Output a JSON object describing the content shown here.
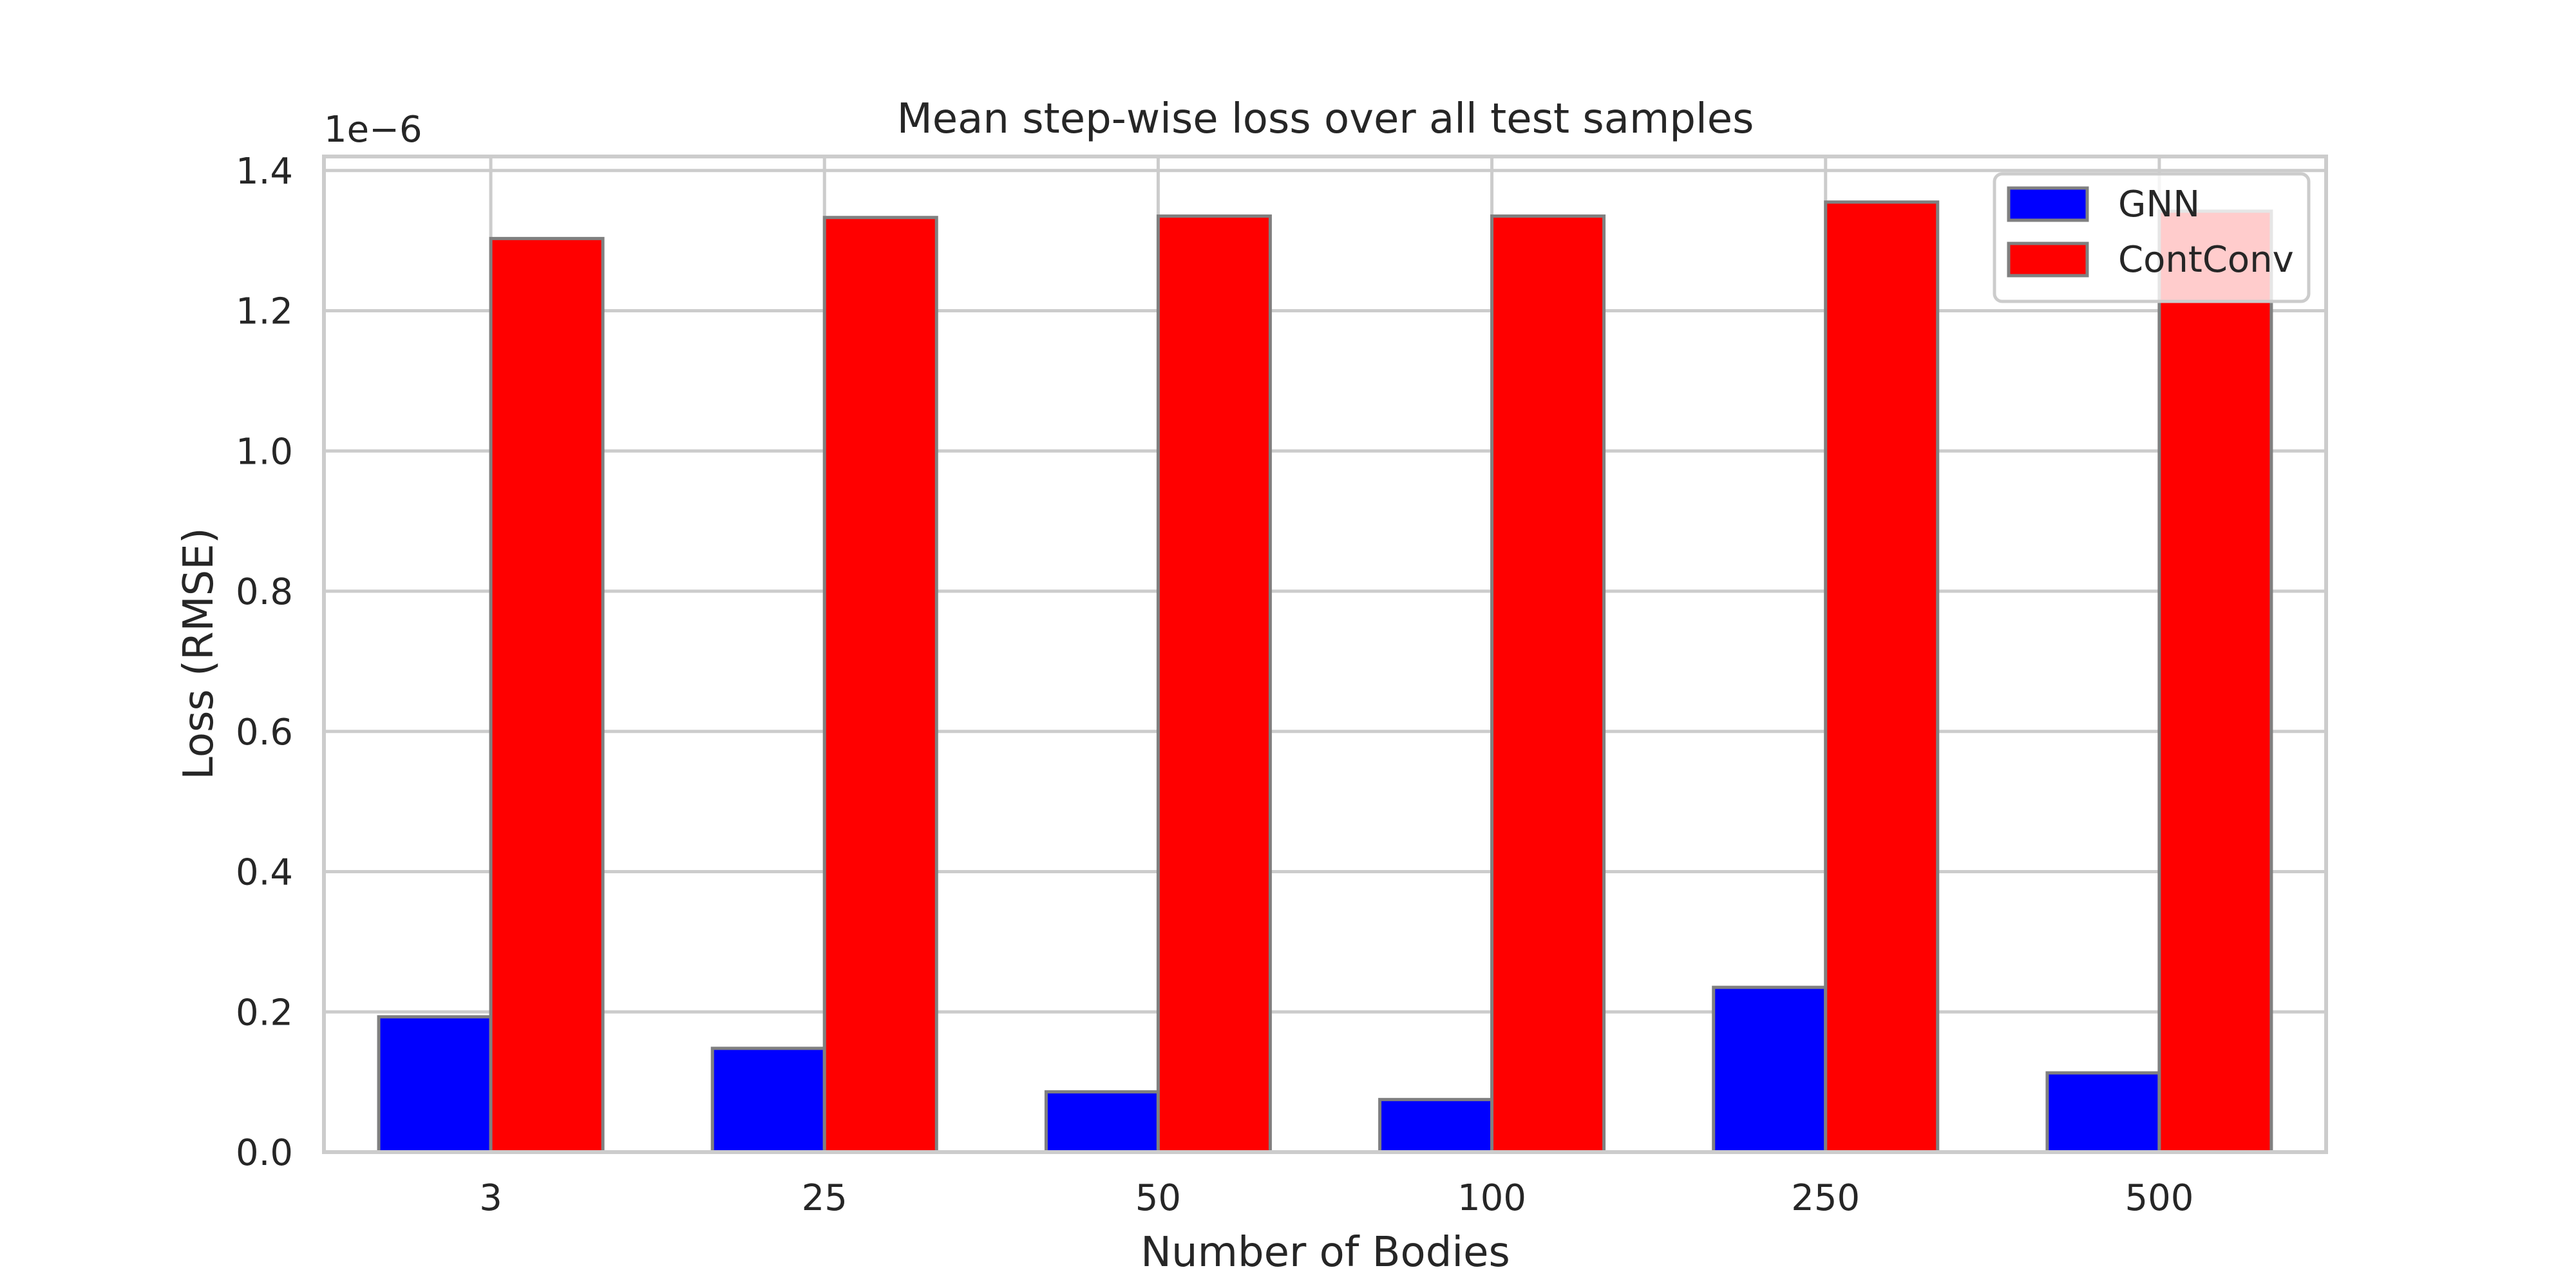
{
  "chart_data": {
    "type": "bar",
    "title": "Mean step-wise loss over all test samples",
    "xlabel": "Number of Bodies",
    "ylabel": "Loss (RMSE)",
    "y_offset_text": "1e−6",
    "categories": [
      "3",
      "25",
      "50",
      "100",
      "250",
      "500"
    ],
    "series": [
      {
        "name": "GNN",
        "color": "#0000ff",
        "values": [
          0.193,
          0.148,
          0.086,
          0.075,
          0.235,
          0.113
        ]
      },
      {
        "name": "ContConv",
        "color": "#ff0000",
        "values": [
          1.303,
          1.333,
          1.335,
          1.335,
          1.355,
          1.342
        ]
      }
    ],
    "ylim": [
      0,
      1.42
    ],
    "yticks": [
      "0.0",
      "0.2",
      "0.4",
      "0.6",
      "0.8",
      "1.0",
      "1.2",
      "1.4"
    ],
    "grid": true,
    "legend": "top-right"
  }
}
